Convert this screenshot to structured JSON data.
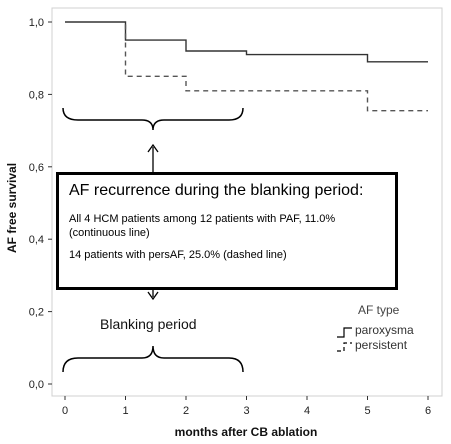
{
  "chart_data": {
    "type": "line",
    "xlabel": "months after CB ablation",
    "ylabel": "AF free survival",
    "xlim": [
      -0.3,
      6.3
    ],
    "ylim": [
      0.0,
      1.0
    ],
    "x_ticks": [
      "0",
      "1",
      "2",
      "3",
      "4",
      "5",
      "6"
    ],
    "y_ticks": [
      "0,0",
      "0,2",
      "0,4",
      "0,6",
      "0,8",
      "1,0"
    ],
    "legend_title": "AF type",
    "legend_position": "bottom-right",
    "series": [
      {
        "name": "paroxysma",
        "style": "solid",
        "x": [
          0,
          1,
          1,
          2,
          2,
          3,
          3,
          5,
          5,
          6
        ],
        "y": [
          1.0,
          1.0,
          0.95,
          0.95,
          0.92,
          0.92,
          0.91,
          0.91,
          0.89,
          0.89
        ]
      },
      {
        "name": "persistent",
        "style": "dashed",
        "x": [
          0,
          1,
          1,
          2,
          2,
          5,
          5,
          6
        ],
        "y": [
          1.0,
          1.0,
          0.85,
          0.85,
          0.81,
          0.81,
          0.755,
          0.755
        ]
      }
    ],
    "annotations": {
      "callout_title": "AF recurrence during the blanking period:",
      "callout_line1": "All 4 HCM patients among 12 patients with PAF, 11.0% (continuous line)",
      "callout_line2": "14 patients with persAF, 25.0% (dashed line)",
      "blanking_label": "Blanking period"
    }
  }
}
